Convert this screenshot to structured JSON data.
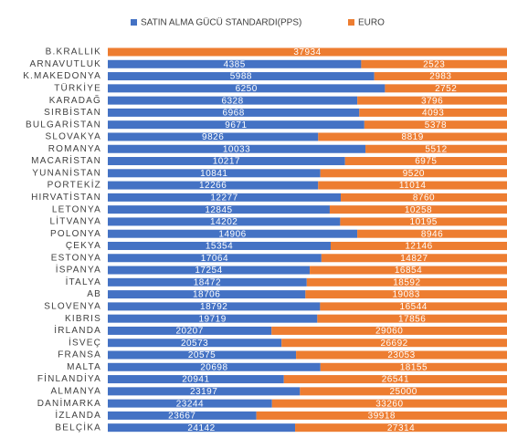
{
  "chart_data": {
    "type": "bar",
    "orientation": "horizontal",
    "stack": "percent",
    "categories": [
      "B.KRALLIK",
      "ARNAVUTLUK",
      "K.MAKEDONYA",
      "TÜRKİYE",
      "KARADAĞ",
      "SIRBİSTAN",
      "BULGARİSTAN",
      "SLOVAKYA",
      "ROMANYA",
      "MACARİSTAN",
      "YUNANİSTAN",
      "PORTEKİZ",
      "HIRVATİSTAN",
      "LETONYA",
      "LİTVANYA",
      "POLONYA",
      "ÇEKYA",
      "ESTONYA",
      "İSPANYA",
      "İTALYA",
      "AB",
      "SLOVENYA",
      "KIBRIS",
      "İRLANDA",
      "İSVEÇ",
      "FRANSA",
      "MALTA",
      "FİNLANDİYA",
      "ALMANYA",
      "DANİMARKA",
      "İZLANDA",
      "BELÇİKA"
    ],
    "series": [
      {
        "name": "SATIN ALMA GÜCÜ STANDARDI(PPS)",
        "color": "#4472c4",
        "values": [
          null,
          4385,
          5988,
          6250,
          6328,
          6968,
          9671,
          9826,
          10033,
          10217,
          10841,
          12266,
          12277,
          12845,
          14202,
          14906,
          15354,
          17064,
          17254,
          18472,
          18706,
          18792,
          19719,
          20207,
          20573,
          20575,
          20698,
          20941,
          23197,
          23244,
          23667,
          24142
        ]
      },
      {
        "name": "EURO",
        "color": "#ed7d31",
        "values": [
          37934,
          2523,
          2983,
          2752,
          3796,
          4093,
          5378,
          8819,
          5512,
          6975,
          9520,
          11014,
          8760,
          10258,
          10195,
          8946,
          12146,
          14827,
          16854,
          18592,
          19083,
          16544,
          17856,
          29060,
          26692,
          23053,
          18155,
          26541,
          25000,
          33260,
          39918,
          27314
        ]
      }
    ]
  }
}
